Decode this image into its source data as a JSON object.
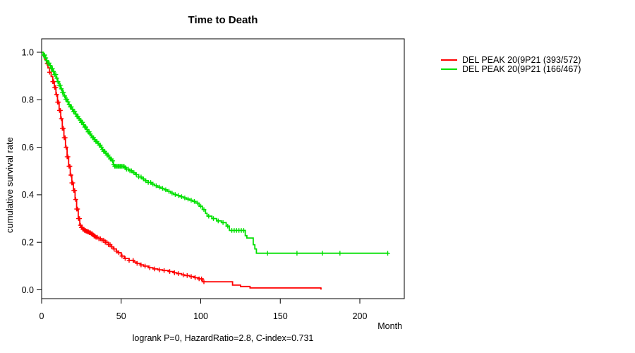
{
  "chart_data": {
    "type": "line",
    "subtype": "kaplan-meier-survival",
    "title": "Time to Death",
    "xlabel": "Month",
    "ylabel": "cumulative survival rate",
    "annotation": "logrank P=0, HazardRatio=2.8, C-index=0.731",
    "xlim": [
      0,
      228
    ],
    "ylim": [
      0,
      1.0
    ],
    "x_ticks": [
      0,
      50,
      100,
      150,
      200
    ],
    "y_ticks": [
      0.0,
      0.2,
      0.4,
      0.6,
      0.8,
      1.0
    ],
    "grid": false,
    "legend_position": "right-outside",
    "series": [
      {
        "name": "DEL PEAK 20(9P21 (393/572)",
        "color": "#ff0000",
        "color_name": "red",
        "events_total": "393/572",
        "end_month": 176,
        "steps": [
          [
            0,
            1.0
          ],
          [
            1,
            0.985
          ],
          [
            2,
            0.97
          ],
          [
            3,
            0.952
          ],
          [
            4,
            0.934
          ],
          [
            5,
            0.916
          ],
          [
            6,
            0.898
          ],
          [
            7,
            0.876
          ],
          [
            8,
            0.852
          ],
          [
            9,
            0.822
          ],
          [
            10,
            0.79
          ],
          [
            11,
            0.755
          ],
          [
            12,
            0.72
          ],
          [
            13,
            0.68
          ],
          [
            14,
            0.64
          ],
          [
            15,
            0.6
          ],
          [
            16,
            0.56
          ],
          [
            17,
            0.52
          ],
          [
            18,
            0.483
          ],
          [
            19,
            0.45
          ],
          [
            20,
            0.418
          ],
          [
            21,
            0.38
          ],
          [
            22,
            0.34
          ],
          [
            23,
            0.3
          ],
          [
            24,
            0.272
          ],
          [
            25,
            0.262
          ],
          [
            26,
            0.255
          ],
          [
            27,
            0.25
          ],
          [
            28,
            0.247
          ],
          [
            29,
            0.244
          ],
          [
            30,
            0.24
          ],
          [
            31,
            0.236
          ],
          [
            32,
            0.231
          ],
          [
            33,
            0.226
          ],
          [
            34,
            0.221
          ],
          [
            36,
            0.215
          ],
          [
            38,
            0.209
          ],
          [
            40,
            0.2
          ],
          [
            42,
            0.19
          ],
          [
            44,
            0.181
          ],
          [
            45,
            0.172
          ],
          [
            47,
            0.163
          ],
          [
            48,
            0.156
          ],
          [
            50,
            0.142
          ],
          [
            52,
            0.132
          ],
          [
            55,
            0.124
          ],
          [
            58,
            0.117
          ],
          [
            60,
            0.111
          ],
          [
            62,
            0.105
          ],
          [
            64,
            0.1
          ],
          [
            67,
            0.093
          ],
          [
            70,
            0.088
          ],
          [
            73,
            0.084
          ],
          [
            76,
            0.081
          ],
          [
            80,
            0.077
          ],
          [
            83,
            0.072
          ],
          [
            85,
            0.068
          ],
          [
            88,
            0.063
          ],
          [
            90,
            0.06
          ],
          [
            93,
            0.056
          ],
          [
            96,
            0.051
          ],
          [
            99,
            0.046
          ],
          [
            101,
            0.034
          ],
          [
            120,
            0.02
          ],
          [
            125,
            0.014
          ],
          [
            131,
            0.008
          ],
          [
            175.5,
            0.004
          ]
        ],
        "censor_months": [
          3.5,
          5.0,
          7.0,
          7.6,
          8.2,
          8.8,
          9.4,
          10.0,
          10.6,
          11.2,
          11.8,
          12.4,
          13.0,
          13.6,
          14.2,
          14.8,
          15.4,
          16.0,
          16.6,
          17.2,
          17.8,
          18.4,
          19.0,
          19.6,
          20.2,
          20.8,
          21.4,
          22.0,
          22.6,
          23.2,
          23.8,
          24.4,
          25.0,
          25.5,
          26.0,
          26.5,
          27.0,
          27.5,
          28.0,
          28.5,
          29.0,
          29.5,
          30.0,
          30.6,
          31.2,
          31.8,
          32.4,
          33.0,
          33.6,
          34.2,
          35.0,
          36.0,
          37.0,
          38.0,
          39.0,
          40.0,
          41.0,
          42.0,
          43.0,
          44.0,
          45.5,
          47.0,
          48.5,
          50.5,
          52.5,
          55.0,
          57.5,
          60.0,
          62.5,
          65.0,
          68.0,
          71.0,
          74.0,
          77.0,
          80.5,
          83.5,
          86.0,
          89.0,
          91.5,
          94.0,
          96.5,
          99.0,
          100.5,
          102.0
        ]
      },
      {
        "name": "DEL PEAK 20(9P21 (166/467)",
        "color": "#00e000",
        "color_name": "green",
        "events_total": "166/467",
        "end_month": 218,
        "steps": [
          [
            0,
            1.0
          ],
          [
            1,
            0.988
          ],
          [
            2,
            0.976
          ],
          [
            3,
            0.965
          ],
          [
            4,
            0.954
          ],
          [
            5,
            0.944
          ],
          [
            6,
            0.931
          ],
          [
            7,
            0.919
          ],
          [
            8,
            0.906
          ],
          [
            9,
            0.891
          ],
          [
            10,
            0.876
          ],
          [
            11,
            0.861
          ],
          [
            12,
            0.846
          ],
          [
            13,
            0.831
          ],
          [
            14,
            0.816
          ],
          [
            15,
            0.802
          ],
          [
            16,
            0.791
          ],
          [
            17,
            0.78
          ],
          [
            18,
            0.77
          ],
          [
            19,
            0.76
          ],
          [
            20,
            0.75
          ],
          [
            21,
            0.74
          ],
          [
            22,
            0.73
          ],
          [
            23,
            0.721
          ],
          [
            24,
            0.714
          ],
          [
            25,
            0.705
          ],
          [
            26,
            0.695
          ],
          [
            27,
            0.685
          ],
          [
            28,
            0.675
          ],
          [
            29,
            0.665
          ],
          [
            30,
            0.656
          ],
          [
            31,
            0.648
          ],
          [
            32,
            0.64
          ],
          [
            33,
            0.632
          ],
          [
            34,
            0.624
          ],
          [
            35,
            0.617
          ],
          [
            36,
            0.609
          ],
          [
            37,
            0.6
          ],
          [
            38,
            0.591
          ],
          [
            39,
            0.583
          ],
          [
            40,
            0.575
          ],
          [
            41,
            0.567
          ],
          [
            42,
            0.559
          ],
          [
            43,
            0.551
          ],
          [
            44,
            0.543
          ],
          [
            45,
            0.527
          ],
          [
            46,
            0.52
          ],
          [
            52,
            0.514
          ],
          [
            53,
            0.508
          ],
          [
            55,
            0.501
          ],
          [
            57,
            0.493
          ],
          [
            59,
            0.485
          ],
          [
            61,
            0.475
          ],
          [
            63,
            0.467
          ],
          [
            65,
            0.459
          ],
          [
            67,
            0.452
          ],
          [
            69,
            0.445
          ],
          [
            71,
            0.438
          ],
          [
            73,
            0.432
          ],
          [
            75,
            0.427
          ],
          [
            77,
            0.421
          ],
          [
            79,
            0.415
          ],
          [
            81,
            0.407
          ],
          [
            83,
            0.401
          ],
          [
            85,
            0.397
          ],
          [
            87,
            0.392
          ],
          [
            89,
            0.387
          ],
          [
            91,
            0.382
          ],
          [
            93,
            0.377
          ],
          [
            95,
            0.372
          ],
          [
            97,
            0.365
          ],
          [
            99,
            0.352
          ],
          [
            101,
            0.338
          ],
          [
            103,
            0.322
          ],
          [
            104,
            0.31
          ],
          [
            107,
            0.3
          ],
          [
            110,
            0.29
          ],
          [
            113,
            0.283
          ],
          [
            116,
            0.268
          ],
          [
            118,
            0.25
          ],
          [
            128,
            0.228
          ],
          [
            129,
            0.218
          ],
          [
            133,
            0.19
          ],
          [
            134,
            0.172
          ],
          [
            135,
            0.154
          ]
        ],
        "censor_months": [
          1.2,
          1.9,
          2.6,
          3.3,
          4.0,
          4.7,
          5.4,
          6.1,
          6.8,
          7.5,
          8.2,
          8.9,
          9.6,
          10.3,
          11.0,
          11.7,
          12.4,
          13.1,
          13.8,
          14.5,
          15.2,
          15.9,
          16.6,
          17.3,
          18.0,
          18.7,
          19.4,
          20.1,
          20.8,
          21.5,
          22.2,
          22.9,
          23.6,
          24.3,
          25.0,
          25.7,
          26.4,
          27.1,
          27.8,
          28.5,
          29.2,
          29.9,
          30.6,
          31.3,
          32.0,
          32.7,
          33.4,
          34.1,
          34.8,
          35.5,
          36.2,
          36.9,
          37.6,
          38.3,
          39.0,
          39.7,
          40.4,
          41.1,
          41.8,
          42.5,
          43.2,
          43.9,
          44.6,
          45.3,
          46.0,
          46.7,
          47.4,
          48.1,
          48.8,
          49.5,
          50.2,
          51.0,
          51.8,
          52.6,
          53.4,
          54.5,
          55.5,
          56.5,
          58.0,
          59.5,
          61.0,
          62.5,
          64.0,
          65.5,
          67.0,
          68.5,
          70.0,
          72.0,
          74.0,
          76.0,
          78.0,
          80.0,
          82.0,
          84.0,
          86.0,
          88.0,
          90.0,
          92.0,
          94.0,
          96.0,
          98.0,
          100.0,
          102.0,
          105.0,
          108.0,
          111.0,
          114.0,
          117.0,
          119.5,
          121.0,
          122.5,
          124.0,
          125.5,
          127.0,
          142.0,
          160.5,
          176.5,
          187.5,
          217.5
        ]
      }
    ]
  }
}
